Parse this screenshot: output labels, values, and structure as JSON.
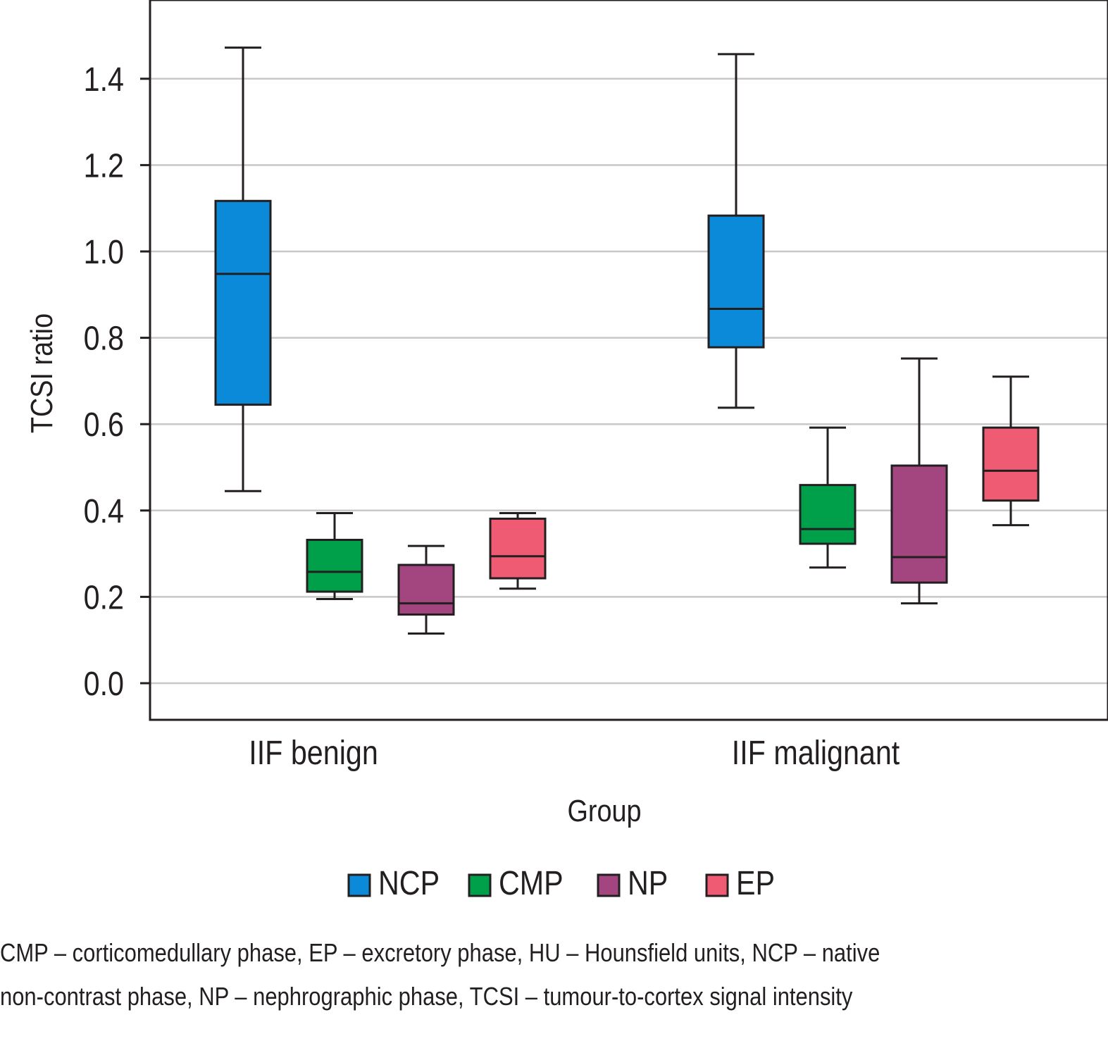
{
  "chart_data": {
    "type": "box",
    "xlabel": "Group",
    "ylabel": "TCSI ratio",
    "ylim": [
      -0.08,
      1.58
    ],
    "yticks": [
      "0.0",
      "0.2",
      "0.4",
      "0.6",
      "0.8",
      "1.0",
      "1.2",
      "1.4"
    ],
    "grid": true,
    "legend_position": "bottom",
    "categories": [
      "IIF benign",
      "IIF malignant"
    ],
    "series": [
      {
        "name": "NCP",
        "color": "#0a8ad8",
        "boxes": [
          {
            "min": 0.445,
            "q1": 0.645,
            "median": 0.948,
            "q3": 1.117,
            "max": 1.472
          },
          {
            "min": 0.638,
            "q1": 0.778,
            "median": 0.867,
            "q3": 1.083,
            "max": 1.457
          }
        ]
      },
      {
        "name": "CMP",
        "color": "#00a04a",
        "boxes": [
          {
            "min": 0.195,
            "q1": 0.212,
            "median": 0.258,
            "q3": 0.332,
            "max": 0.394
          },
          {
            "min": 0.268,
            "q1": 0.323,
            "median": 0.357,
            "q3": 0.459,
            "max": 0.592
          }
        ]
      },
      {
        "name": "NP",
        "color": "#a3457f",
        "boxes": [
          {
            "min": 0.115,
            "q1": 0.159,
            "median": 0.185,
            "q3": 0.274,
            "max": 0.318
          },
          {
            "min": 0.185,
            "q1": 0.233,
            "median": 0.292,
            "q3": 0.504,
            "max": 0.752
          }
        ]
      },
      {
        "name": "EP",
        "color": "#ef5b72",
        "boxes": [
          {
            "min": 0.219,
            "q1": 0.243,
            "median": 0.294,
            "q3": 0.381,
            "max": 0.394
          },
          {
            "min": 0.366,
            "q1": 0.423,
            "median": 0.492,
            "q3": 0.592,
            "max": 0.71
          }
        ]
      }
    ]
  },
  "footnote": {
    "line1": "CMP – corticomedullary phase, EP – excretory phase, HU – Hounsfield units, NCP – native",
    "line2": "non-contrast phase, NP – nephrographic phase, TCSI – tumour-to-cortex signal intensity"
  }
}
